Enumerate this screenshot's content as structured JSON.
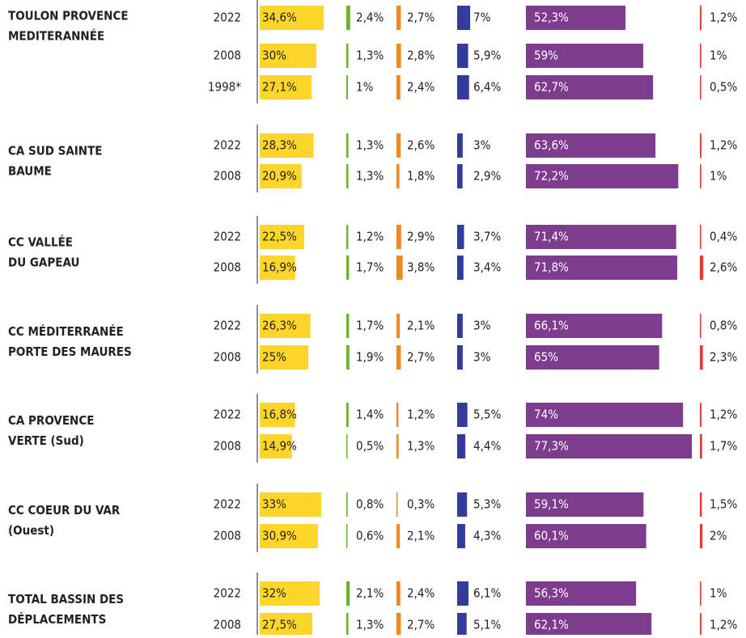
{
  "chart_data": {
    "type": "bar",
    "colors": [
      "#fdd52b",
      "#6ab42d",
      "#ee8a1f",
      "#323c9a",
      "#7d3c8e",
      "#e53935"
    ],
    "groups": [
      {
        "name": [
          "TOULON PROVENCE",
          "MEDITERANNÉE"
        ],
        "rows": [
          {
            "year": "2022",
            "values": [
              34.6,
              2.4,
              2.7,
              7,
              52.3,
              1.2
            ],
            "value_labels": [
              "34,6%",
              "2,4%",
              "2,7%",
              "7%",
              "52,3%",
              "1,2%"
            ]
          },
          {
            "year": "2008",
            "values": [
              30,
              1.3,
              2.8,
              5.9,
              59,
              1
            ],
            "value_labels": [
              "30%",
              "1,3%",
              "2,8%",
              "5,9%",
              "59%",
              "1%"
            ]
          },
          {
            "year": "1998*",
            "values": [
              27.1,
              1,
              2.4,
              6.4,
              62.7,
              0.5
            ],
            "value_labels": [
              "27,1%",
              "1%",
              "2,4%",
              "6,4%",
              "62,7%",
              "0,5%"
            ]
          }
        ]
      },
      {
        "name": [
          "CA SUD SAINTE",
          "BAUME"
        ],
        "rows": [
          {
            "year": "2022",
            "values": [
              28.3,
              1.3,
              2.6,
              3,
              63.6,
              1.2
            ],
            "value_labels": [
              "28,3%",
              "1,3%",
              "2,6%",
              "3%",
              "63,6%",
              "1,2%"
            ]
          },
          {
            "year": "2008",
            "values": [
              20.9,
              1.3,
              1.8,
              2.9,
              72.2,
              1
            ],
            "value_labels": [
              "20,9%",
              "1,3%",
              "1,8%",
              "2,9%",
              "72,2%",
              "1%"
            ]
          }
        ]
      },
      {
        "name": [
          "CC VALLÉE",
          "DU GAPEAU"
        ],
        "rows": [
          {
            "year": "2022",
            "values": [
              22.5,
              1.2,
              2.9,
              3.7,
              71.4,
              0.4
            ],
            "value_labels": [
              "22,5%",
              "1,2%",
              "2,9%",
              "3,7%",
              "71,4%",
              "0,4%"
            ]
          },
          {
            "year": "2008",
            "values": [
              16.9,
              1.7,
              3.8,
              3.4,
              71.8,
              2.6
            ],
            "value_labels": [
              "16,9%",
              "1,7%",
              "3,8%",
              "3,4%",
              "71,8%",
              "2,6%"
            ]
          }
        ]
      },
      {
        "name": [
          "CC MÉDITERRANÉE",
          "PORTE DES MAURES"
        ],
        "rows": [
          {
            "year": "2022",
            "values": [
              26.3,
              1.7,
              2.1,
              3,
              66.1,
              0.8
            ],
            "value_labels": [
              "26,3%",
              "1,7%",
              "2,1%",
              "3%",
              "66,1%",
              "0,8%"
            ]
          },
          {
            "year": "2008",
            "values": [
              25,
              1.9,
              2.7,
              3,
              65,
              2.3
            ],
            "value_labels": [
              "25%",
              "1,9%",
              "2,7%",
              "3%",
              "65%",
              "2,3%"
            ]
          }
        ]
      },
      {
        "name": [
          "CA PROVENCE",
          "VERTE (Sud)"
        ],
        "rows": [
          {
            "year": "2022",
            "values": [
              16.8,
              1.4,
              1.2,
              5.5,
              74,
              1.2
            ],
            "value_labels": [
              "16,8%",
              "1,4%",
              "1,2%",
              "5,5%",
              "74%",
              "1,2%"
            ]
          },
          {
            "year": "2008",
            "values": [
              14.9,
              0.5,
              1.3,
              4.4,
              77.3,
              1.7
            ],
            "value_labels": [
              "14,9%",
              "0,5%",
              "1,3%",
              "4,4%",
              "77,3%",
              "1,7%"
            ]
          }
        ]
      },
      {
        "name": [
          "CC COEUR DU VAR",
          "(Ouest)"
        ],
        "rows": [
          {
            "year": "2022",
            "values": [
              33,
              0.8,
              0.3,
              5.3,
              59.1,
              1.5
            ],
            "value_labels": [
              "33%",
              "0,8%",
              "0,3%",
              "5,3%",
              "59,1%",
              "1,5%"
            ]
          },
          {
            "year": "2008",
            "values": [
              30.9,
              0.6,
              2.1,
              4.3,
              60.1,
              2
            ],
            "value_labels": [
              "30,9%",
              "0,6%",
              "2,1%",
              "4,3%",
              "60,1%",
              "2%"
            ]
          }
        ]
      },
      {
        "name": [
          "TOTAL BASSIN DES",
          "DÉPLACEMENTS"
        ],
        "rows": [
          {
            "year": "2022",
            "values": [
              32,
              2.1,
              2.4,
              6.1,
              56.3,
              1
            ],
            "value_labels": [
              "32%",
              "2,1%",
              "2,4%",
              "6,1%",
              "56,3%",
              "1%"
            ]
          },
          {
            "year": "2008",
            "values": [
              27.5,
              1.3,
              2.7,
              5.1,
              62.1,
              1.2
            ],
            "value_labels": [
              "27,5%",
              "1,3%",
              "2,7%",
              "5,1%",
              "62,1%",
              "1,2%"
            ]
          }
        ]
      }
    ]
  }
}
